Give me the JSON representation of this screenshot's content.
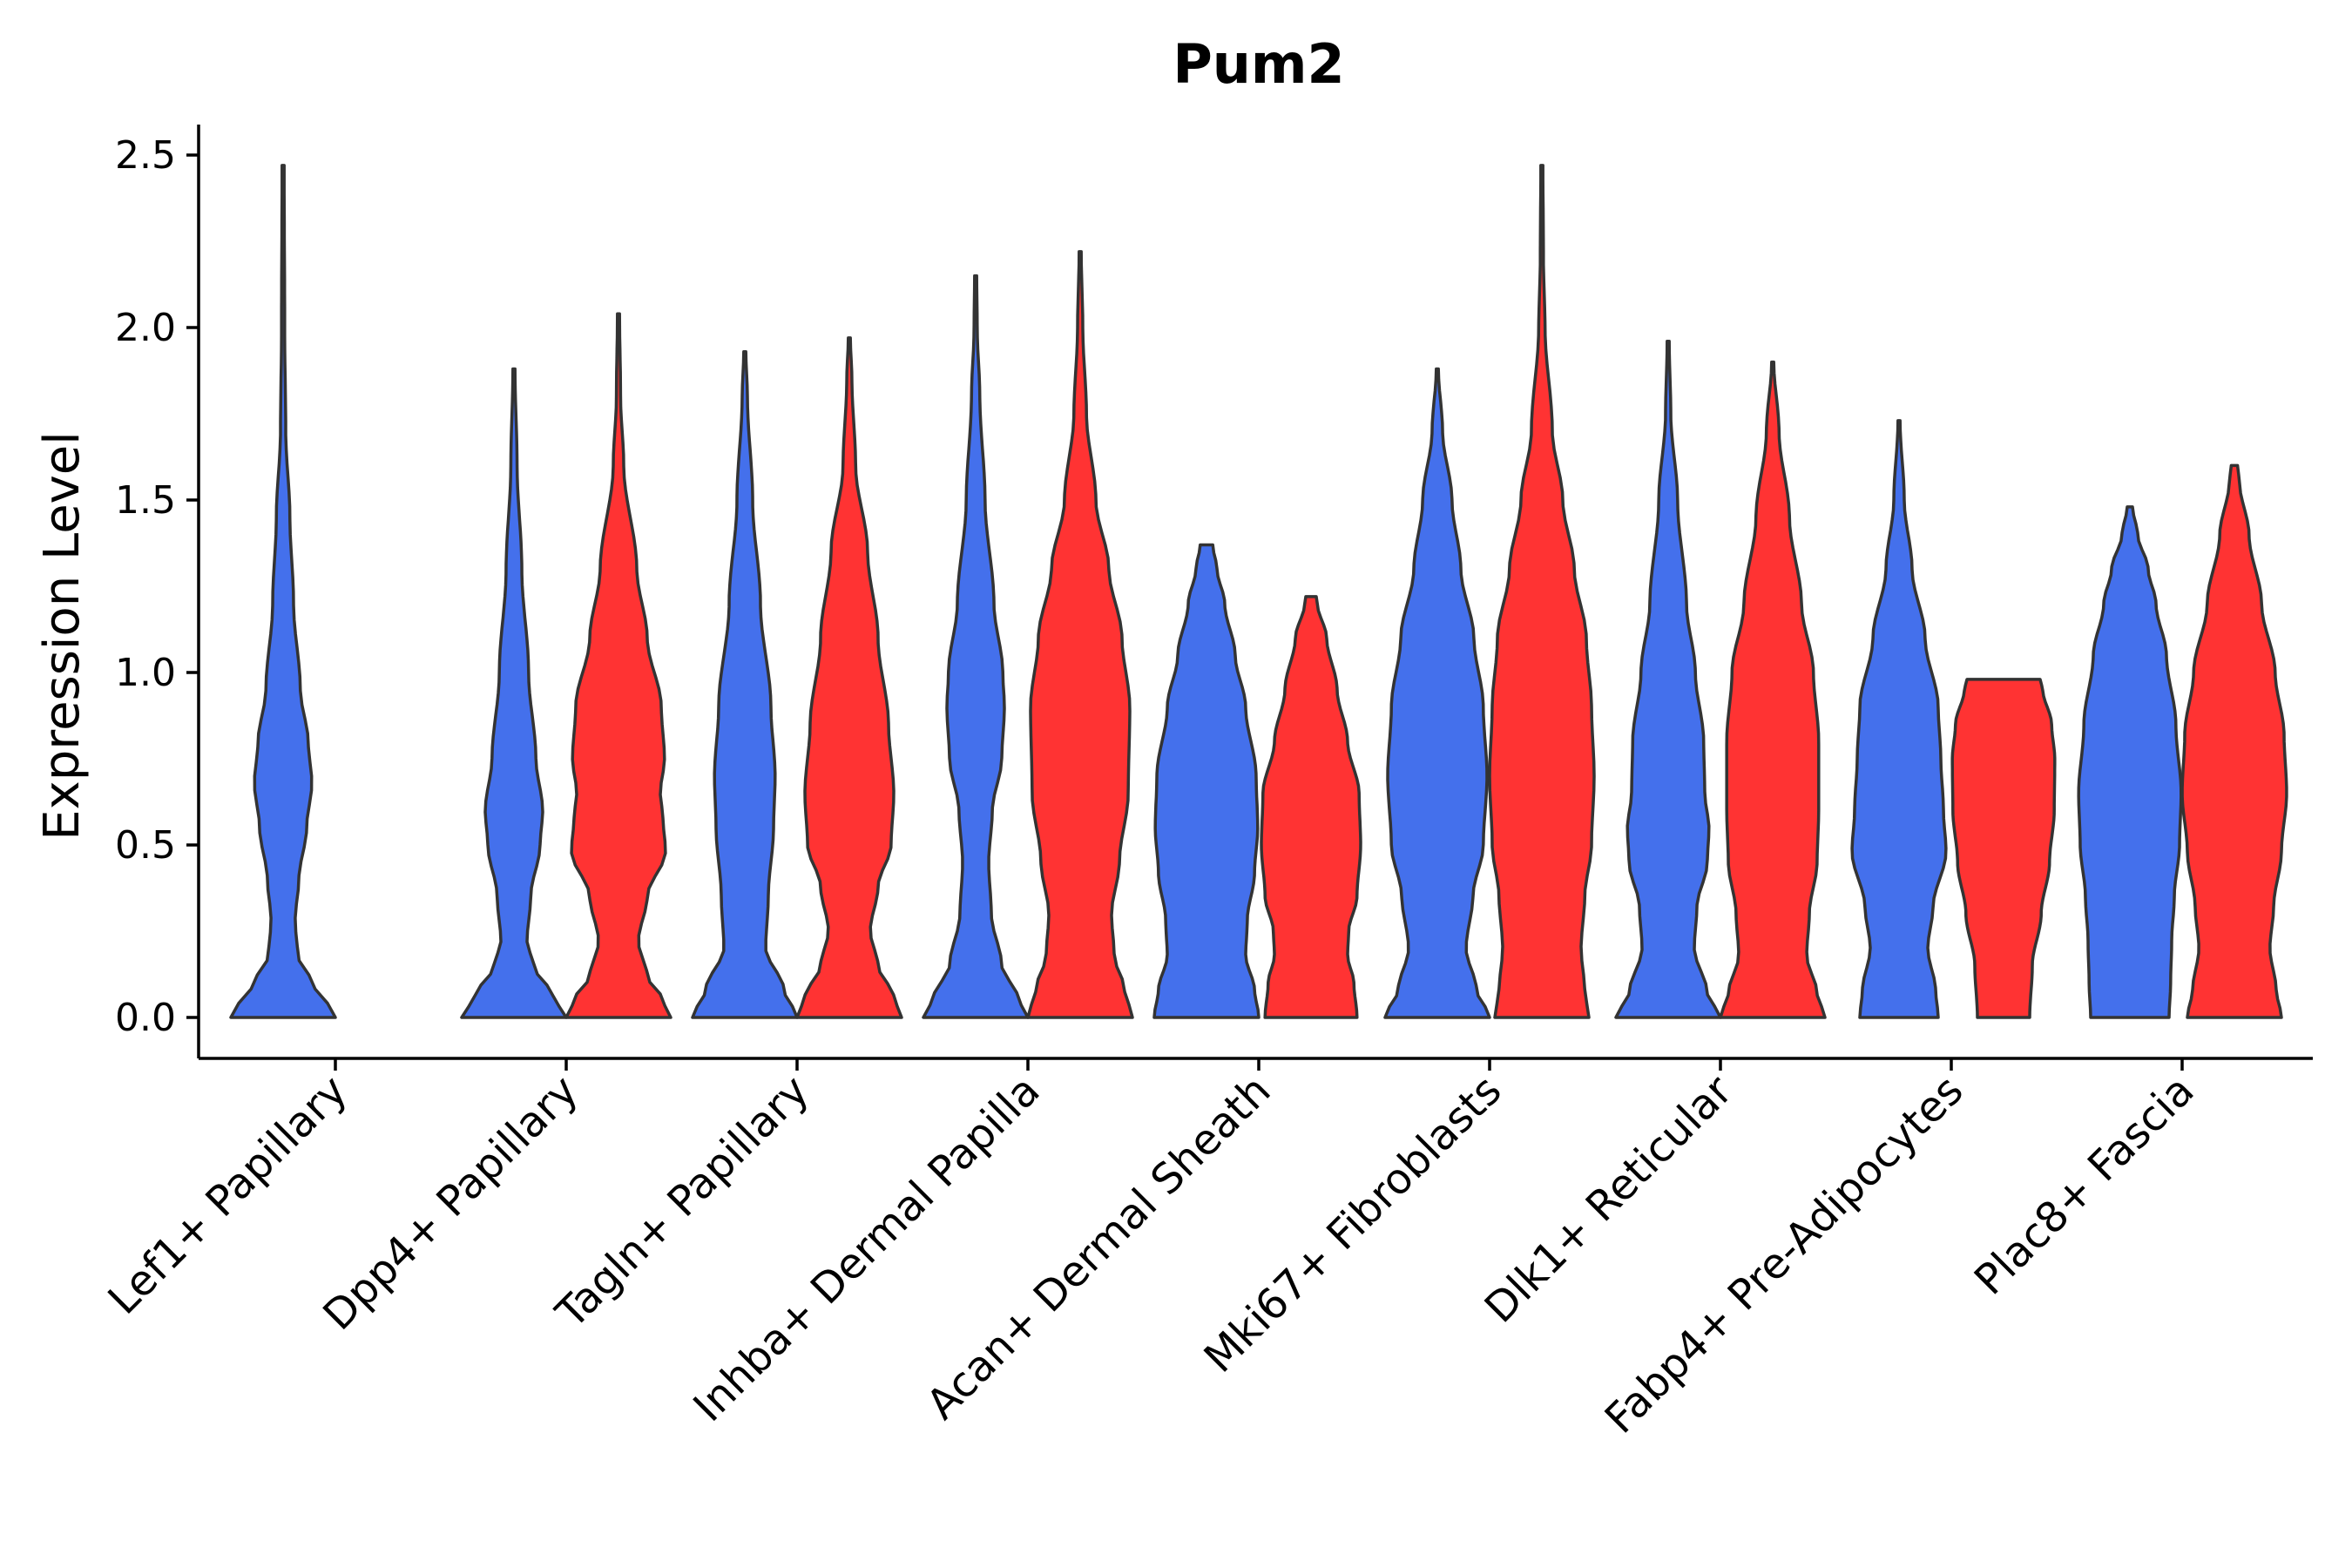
{
  "chart_data": {
    "type": "violin",
    "title": "Pum2",
    "xlabel": "",
    "ylabel": "Expression Level",
    "ylim": [
      0,
      2.6
    ],
    "yticks": [
      "0.0",
      "0.5",
      "1.0",
      "1.5",
      "2.0",
      "2.5"
    ],
    "ytick_values": [
      0,
      0.5,
      1.0,
      1.5,
      2.0,
      2.5
    ],
    "colors": {
      "group1": "#4470EC",
      "group2": "#FF3333"
    },
    "categories": [
      "Lef1+ Papillary",
      "Dpp4+ Papillary",
      "Tagln+ Papillary",
      "Inhba+ Dermal Papilla",
      "Acan+ Dermal Sheath",
      "Mki67+ Fibroblasts",
      "Dlk1+ Reticular",
      "Fabp4+ Pre-Adipocytes",
      "Plac8+ Fascia"
    ],
    "violins": [
      {
        "category": "Lef1+ Papillary",
        "group": "group1",
        "max": 2.47,
        "profile": [
          [
            0,
            1
          ],
          [
            0.04,
            0.85
          ],
          [
            0.1,
            0.55
          ],
          [
            0.18,
            0.28
          ],
          [
            0.28,
            0.23
          ],
          [
            0.4,
            0.3
          ],
          [
            0.55,
            0.45
          ],
          [
            0.68,
            0.55
          ],
          [
            0.8,
            0.48
          ],
          [
            0.95,
            0.33
          ],
          [
            1.2,
            0.2
          ],
          [
            1.45,
            0.13
          ],
          [
            1.7,
            0.05
          ],
          [
            2.0,
            0.03
          ],
          [
            2.47,
            0.02
          ]
        ]
      },
      {
        "category": "Dpp4+ Papillary",
        "group": "group1",
        "max": 1.88,
        "profile": [
          [
            0,
            1
          ],
          [
            0.06,
            0.75
          ],
          [
            0.15,
            0.38
          ],
          [
            0.22,
            0.25
          ],
          [
            0.35,
            0.32
          ],
          [
            0.5,
            0.5
          ],
          [
            0.6,
            0.55
          ],
          [
            0.75,
            0.42
          ],
          [
            1.0,
            0.28
          ],
          [
            1.3,
            0.15
          ],
          [
            1.6,
            0.06
          ],
          [
            1.88,
            0.02
          ]
        ]
      },
      {
        "category": "Dpp4+ Papillary",
        "group": "group2",
        "max": 2.04,
        "profile": [
          [
            0,
            1
          ],
          [
            0.05,
            0.85
          ],
          [
            0.12,
            0.55
          ],
          [
            0.22,
            0.38
          ],
          [
            0.35,
            0.55
          ],
          [
            0.48,
            0.9
          ],
          [
            0.58,
            0.85
          ],
          [
            0.65,
            0.8
          ],
          [
            0.75,
            0.88
          ],
          [
            0.9,
            0.82
          ],
          [
            1.1,
            0.55
          ],
          [
            1.3,
            0.35
          ],
          [
            1.6,
            0.1
          ],
          [
            1.8,
            0.04
          ],
          [
            2.04,
            0.02
          ]
        ]
      },
      {
        "category": "Tagln+ Papillary",
        "group": "group1",
        "max": 1.93,
        "profile": [
          [
            0,
            1
          ],
          [
            0.08,
            0.75
          ],
          [
            0.2,
            0.4
          ],
          [
            0.35,
            0.45
          ],
          [
            0.55,
            0.55
          ],
          [
            0.7,
            0.58
          ],
          [
            0.9,
            0.5
          ],
          [
            1.2,
            0.3
          ],
          [
            1.5,
            0.15
          ],
          [
            1.8,
            0.05
          ],
          [
            1.93,
            0.02
          ]
        ]
      },
      {
        "category": "Tagln+ Papillary",
        "group": "group2",
        "max": 1.97,
        "profile": [
          [
            0,
            1
          ],
          [
            0.06,
            0.85
          ],
          [
            0.15,
            0.55
          ],
          [
            0.25,
            0.4
          ],
          [
            0.38,
            0.55
          ],
          [
            0.5,
            0.8
          ],
          [
            0.65,
            0.85
          ],
          [
            0.85,
            0.75
          ],
          [
            1.1,
            0.55
          ],
          [
            1.35,
            0.35
          ],
          [
            1.6,
            0.12
          ],
          [
            1.85,
            0.05
          ],
          [
            1.97,
            0.02
          ]
        ]
      },
      {
        "category": "Inhba+ Dermal Papilla",
        "group": "group1",
        "max": 2.15,
        "profile": [
          [
            0,
            1
          ],
          [
            0.06,
            0.8
          ],
          [
            0.15,
            0.5
          ],
          [
            0.3,
            0.3
          ],
          [
            0.45,
            0.25
          ],
          [
            0.6,
            0.32
          ],
          [
            0.75,
            0.5
          ],
          [
            0.9,
            0.55
          ],
          [
            1.0,
            0.52
          ],
          [
            1.2,
            0.35
          ],
          [
            1.5,
            0.18
          ],
          [
            1.8,
            0.08
          ],
          [
            2.0,
            0.03
          ],
          [
            2.15,
            0.02
          ]
        ]
      },
      {
        "category": "Inhba+ Dermal Papilla",
        "group": "group2",
        "max": 2.22,
        "profile": [
          [
            0,
            1
          ],
          [
            0.08,
            0.85
          ],
          [
            0.18,
            0.65
          ],
          [
            0.3,
            0.6
          ],
          [
            0.45,
            0.75
          ],
          [
            0.65,
            0.92
          ],
          [
            0.9,
            0.95
          ],
          [
            1.1,
            0.8
          ],
          [
            1.3,
            0.55
          ],
          [
            1.5,
            0.3
          ],
          [
            1.75,
            0.12
          ],
          [
            2.0,
            0.05
          ],
          [
            2.22,
            0.02
          ]
        ]
      },
      {
        "category": "Acan+ Dermal Sheath",
        "group": "group1",
        "max": 1.37,
        "profile": [
          [
            0,
            1
          ],
          [
            0.08,
            0.92
          ],
          [
            0.18,
            0.75
          ],
          [
            0.28,
            0.78
          ],
          [
            0.42,
            0.92
          ],
          [
            0.55,
            0.98
          ],
          [
            0.7,
            0.95
          ],
          [
            0.9,
            0.75
          ],
          [
            1.05,
            0.55
          ],
          [
            1.2,
            0.35
          ],
          [
            1.3,
            0.2
          ],
          [
            1.37,
            0.12
          ]
        ]
      },
      {
        "category": "Acan+ Dermal Sheath",
        "group": "group2",
        "max": 1.22,
        "profile": [
          [
            0,
            0.88
          ],
          [
            0.1,
            0.82
          ],
          [
            0.18,
            0.7
          ],
          [
            0.25,
            0.72
          ],
          [
            0.35,
            0.88
          ],
          [
            0.5,
            0.95
          ],
          [
            0.65,
            0.92
          ],
          [
            0.8,
            0.7
          ],
          [
            0.95,
            0.5
          ],
          [
            1.1,
            0.3
          ],
          [
            1.2,
            0.12
          ],
          [
            1.22,
            0.1
          ]
        ]
      },
      {
        "category": "Mki67+ Fibroblasts",
        "group": "group1",
        "max": 1.88,
        "profile": [
          [
            0,
            1
          ],
          [
            0.08,
            0.75
          ],
          [
            0.2,
            0.55
          ],
          [
            0.35,
            0.68
          ],
          [
            0.5,
            0.88
          ],
          [
            0.7,
            0.95
          ],
          [
            0.9,
            0.88
          ],
          [
            1.1,
            0.7
          ],
          [
            1.3,
            0.45
          ],
          [
            1.5,
            0.28
          ],
          [
            1.7,
            0.1
          ],
          [
            1.88,
            0.02
          ]
        ]
      },
      {
        "category": "Mki67+ Fibroblasts",
        "group": "group2",
        "max": 2.47,
        "profile": [
          [
            0,
            0.9
          ],
          [
            0.08,
            0.82
          ],
          [
            0.2,
            0.75
          ],
          [
            0.35,
            0.82
          ],
          [
            0.5,
            0.95
          ],
          [
            0.7,
            1.0
          ],
          [
            0.9,
            0.95
          ],
          [
            1.1,
            0.85
          ],
          [
            1.3,
            0.62
          ],
          [
            1.5,
            0.4
          ],
          [
            1.7,
            0.2
          ],
          [
            2.0,
            0.06
          ],
          [
            2.2,
            0.03
          ],
          [
            2.47,
            0.02
          ]
        ]
      },
      {
        "category": "Dlk1+ Reticular",
        "group": "group1",
        "max": 1.96,
        "profile": [
          [
            0,
            1
          ],
          [
            0.07,
            0.75
          ],
          [
            0.2,
            0.5
          ],
          [
            0.32,
            0.55
          ],
          [
            0.45,
            0.75
          ],
          [
            0.55,
            0.78
          ],
          [
            0.65,
            0.7
          ],
          [
            0.8,
            0.68
          ],
          [
            1.0,
            0.52
          ],
          [
            1.2,
            0.35
          ],
          [
            1.5,
            0.18
          ],
          [
            1.75,
            0.05
          ],
          [
            1.96,
            0.02
          ]
        ]
      },
      {
        "category": "Dlk1+ Reticular",
        "group": "group2",
        "max": 1.9,
        "profile": [
          [
            0,
            1
          ],
          [
            0.07,
            0.85
          ],
          [
            0.18,
            0.65
          ],
          [
            0.3,
            0.7
          ],
          [
            0.45,
            0.85
          ],
          [
            0.6,
            0.88
          ],
          [
            0.8,
            0.88
          ],
          [
            1.0,
            0.78
          ],
          [
            1.2,
            0.55
          ],
          [
            1.45,
            0.32
          ],
          [
            1.7,
            0.12
          ],
          [
            1.9,
            0.02
          ]
        ]
      },
      {
        "category": "Fabp4+ Pre-Adipocytes",
        "group": "group1",
        "max": 1.73,
        "profile": [
          [
            0,
            0.75
          ],
          [
            0.08,
            0.7
          ],
          [
            0.2,
            0.55
          ],
          [
            0.32,
            0.65
          ],
          [
            0.48,
            0.9
          ],
          [
            0.6,
            0.85
          ],
          [
            0.75,
            0.8
          ],
          [
            0.9,
            0.75
          ],
          [
            1.1,
            0.5
          ],
          [
            1.3,
            0.25
          ],
          [
            1.5,
            0.1
          ],
          [
            1.73,
            0.02
          ]
        ]
      },
      {
        "category": "Fabp4+ Pre-Adipocytes",
        "group": "group2",
        "max": 0.98,
        "profile": [
          [
            0,
            0.5
          ],
          [
            0.15,
            0.55
          ],
          [
            0.3,
            0.72
          ],
          [
            0.45,
            0.88
          ],
          [
            0.6,
            0.97
          ],
          [
            0.75,
            0.98
          ],
          [
            0.85,
            0.92
          ],
          [
            0.95,
            0.75
          ],
          [
            0.98,
            0.7
          ]
        ]
      },
      {
        "category": "Plac8+ Fascia",
        "group": "group1",
        "max": 1.48,
        "profile": [
          [
            0,
            0.75
          ],
          [
            0.1,
            0.78
          ],
          [
            0.22,
            0.8
          ],
          [
            0.35,
            0.85
          ],
          [
            0.5,
            0.95
          ],
          [
            0.65,
            0.98
          ],
          [
            0.85,
            0.88
          ],
          [
            1.05,
            0.7
          ],
          [
            1.2,
            0.5
          ],
          [
            1.3,
            0.35
          ],
          [
            1.4,
            0.15
          ],
          [
            1.48,
            0.05
          ]
        ]
      },
      {
        "category": "Plac8+ Fascia",
        "group": "group2",
        "max": 1.6,
        "profile": [
          [
            0,
            0.9
          ],
          [
            0.08,
            0.8
          ],
          [
            0.2,
            0.68
          ],
          [
            0.32,
            0.75
          ],
          [
            0.48,
            0.9
          ],
          [
            0.65,
            1.0
          ],
          [
            0.82,
            0.95
          ],
          [
            1.0,
            0.78
          ],
          [
            1.2,
            0.52
          ],
          [
            1.4,
            0.28
          ],
          [
            1.55,
            0.1
          ],
          [
            1.6,
            0.06
          ]
        ]
      }
    ]
  }
}
